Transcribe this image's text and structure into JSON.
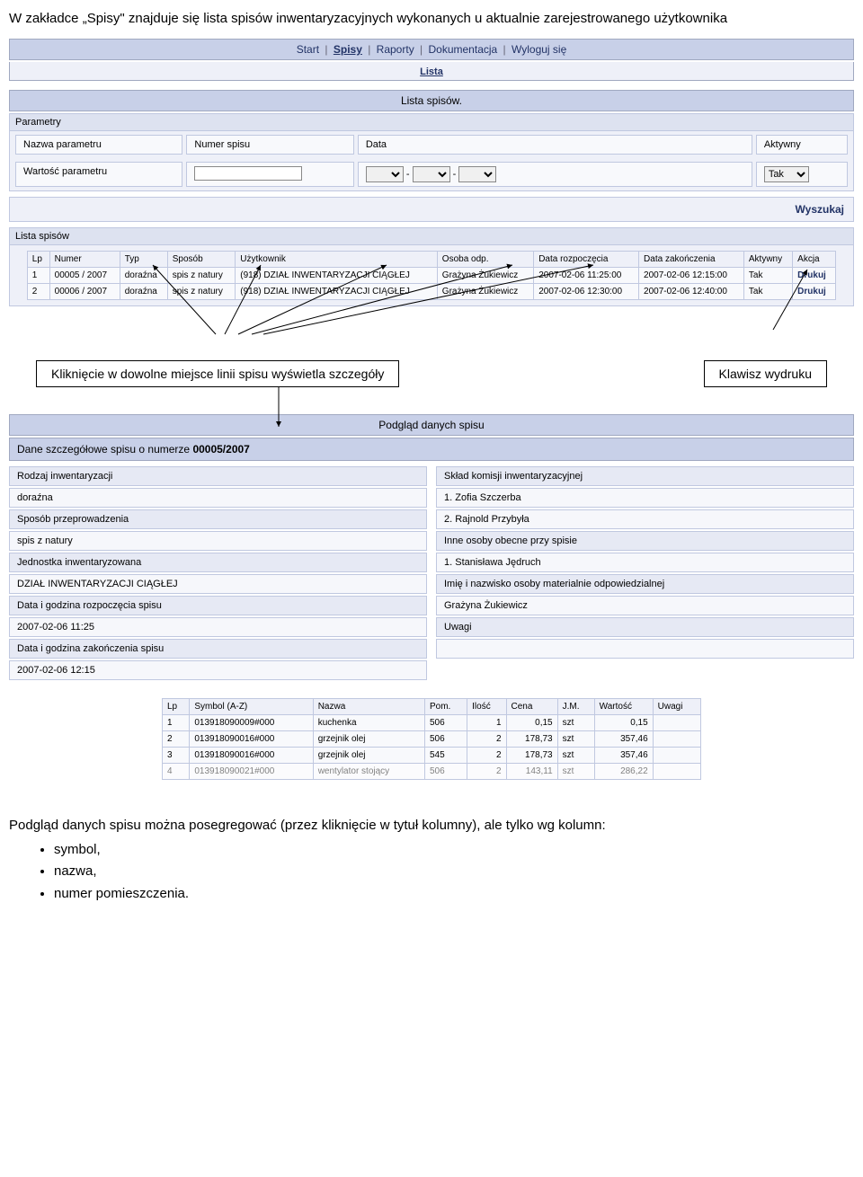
{
  "intro": "W zakładce „Spisy\" znajduje się lista spisów inwentaryzacyjnych wykonanych u aktualnie zarejestrowanego użytkownika",
  "nav": {
    "items": [
      "Start",
      "Spisy",
      "Raporty",
      "Dokumentacja",
      "Wyloguj się"
    ],
    "current": "Spisy",
    "sub": "Lista"
  },
  "list_section": {
    "title": "Lista spisów.",
    "params_label": "Parametry",
    "param_name_label": "Nazwa parametru",
    "param_value_label": "Wartość parametru",
    "col_numer": "Numer spisu",
    "col_data": "Data",
    "col_aktywny": "Aktywny",
    "aktywny_value": "Tak",
    "search": "Wyszukaj",
    "table_label": "Lista spisów",
    "headers": {
      "lp": "Lp",
      "numer": "Numer",
      "typ": "Typ",
      "sposob": "Sposób",
      "uzytkownik": "Użytkownik",
      "osoba": "Osoba odp.",
      "start": "Data rozpoczęcia",
      "end": "Data zakończenia",
      "aktywny": "Aktywny",
      "akcja": "Akcja"
    },
    "rows": [
      {
        "lp": "1",
        "numer": "00005 / 2007",
        "typ": "doraźna",
        "sposob": "spis z natury",
        "uzytkownik": "(918) DZIAŁ INWENTARYZACJI CIĄGŁEJ",
        "osoba": "Grażyna Żukiewicz",
        "start": "2007-02-06 11:25:00",
        "end": "2007-02-06 12:15:00",
        "aktywny": "Tak",
        "akcja": "Drukuj"
      },
      {
        "lp": "2",
        "numer": "00006 / 2007",
        "typ": "doraźna",
        "sposob": "spis z natury",
        "uzytkownik": "(918) DZIAŁ INWENTARYZACJI CIĄGŁEJ",
        "osoba": "Grażyna Żukiewicz",
        "start": "2007-02-06 12:30:00",
        "end": "2007-02-06 12:40:00",
        "aktywny": "Tak",
        "akcja": "Drukuj"
      }
    ]
  },
  "anno": {
    "left": "Kliknięcie w dowolne miejsce linii spisu wyświetla szczegóły",
    "right": "Klawisz wydruku"
  },
  "preview": {
    "title": "Podgląd danych spisu",
    "header_prefix": "Dane szczegółowe spisu o numerze ",
    "header_num": "00005/2007",
    "left": [
      {
        "l": "Rodzaj inwentaryzacji",
        "v": "doraźna"
      },
      {
        "l": "Sposób przeprowadzenia",
        "v": "spis z natury"
      },
      {
        "l": "Jednostka inwentaryzowana",
        "v": "DZIAŁ INWENTARYZACJI CIĄGŁEJ"
      },
      {
        "l": "Data i godzina rozpoczęcia spisu",
        "v": "2007-02-06 11:25"
      },
      {
        "l": "Data i godzina zakończenia spisu",
        "v": "2007-02-06 12:15"
      }
    ],
    "right": [
      {
        "l": "Skład komisji inwentaryzacyjnej",
        "v": [
          "1. Zofia Szczerba",
          "2. Rajnold Przybyła"
        ]
      },
      {
        "l": "Inne osoby obecne przy spisie",
        "v": [
          "1. Stanisława Jędruch"
        ]
      },
      {
        "l": "Imię i nazwisko osoby materialnie odpowiedzialnej",
        "v": [
          "Grażyna Żukiewicz"
        ]
      },
      {
        "l": "Uwagi",
        "v": [
          ""
        ]
      }
    ],
    "items_headers": {
      "lp": "Lp",
      "sym": "Symbol (A-Z)",
      "naz": "Nazwa",
      "pom": "Pom.",
      "il": "Ilość",
      "cena": "Cena",
      "jm": "J.M.",
      "wart": "Wartość",
      "uw": "Uwagi"
    },
    "items": [
      {
        "lp": "1",
        "sym": "013918090009#000",
        "naz": "kuchenka",
        "pom": "506",
        "il": "1",
        "cena": "0,15",
        "jm": "szt",
        "wart": "0,15",
        "uw": ""
      },
      {
        "lp": "2",
        "sym": "013918090016#000",
        "naz": "grzejnik olej",
        "pom": "506",
        "il": "2",
        "cena": "178,73",
        "jm": "szt",
        "wart": "357,46",
        "uw": ""
      },
      {
        "lp": "3",
        "sym": "013918090016#000",
        "naz": "grzejnik olej",
        "pom": "545",
        "il": "2",
        "cena": "178,73",
        "jm": "szt",
        "wart": "357,46",
        "uw": ""
      },
      {
        "lp": "4",
        "sym": "013918090021#000",
        "naz": "wentylator stojący",
        "pom": "506",
        "il": "2",
        "cena": "143,11",
        "jm": "szt",
        "wart": "286,22",
        "uw": ""
      }
    ]
  },
  "footer": {
    "text": "Podgląd danych spisu można posegregować (przez kliknięcie w tytuł kolumny), ale tylko wg kolumn:",
    "bullets": [
      "symbol,",
      "nazwa,",
      "numer pomieszczenia."
    ]
  }
}
